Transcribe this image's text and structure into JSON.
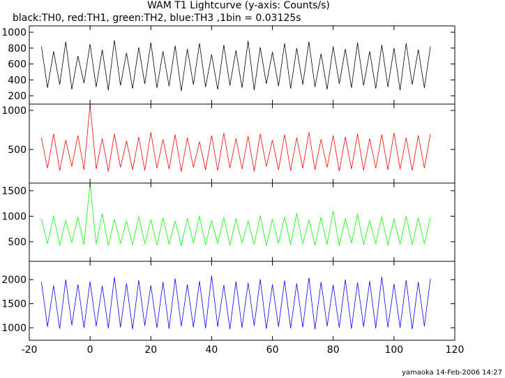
{
  "title": "WAM T1 Lightcurve (y-axis: Counts/s)",
  "subtitle": "black:TH0, red:TH1, green:TH2, blue:TH3 ,1bin = 0.03125s",
  "footer": "yamaoka 14-Feb-2006 14:27",
  "chart_data": [
    {
      "type": "line",
      "color": "#000000",
      "x": [
        -16,
        -14,
        -12,
        -10,
        -8,
        -6,
        -4,
        -2,
        0,
        2,
        4,
        6,
        8,
        10,
        12,
        14,
        16,
        18,
        20,
        22,
        24,
        26,
        28,
        30,
        32,
        34,
        36,
        38,
        40,
        42,
        44,
        46,
        48,
        50,
        52,
        54,
        56,
        58,
        60,
        62,
        64,
        66,
        68,
        70,
        72,
        74,
        76,
        78,
        80,
        82,
        84,
        86,
        88,
        90,
        92,
        94,
        96,
        98,
        100,
        102,
        104,
        106,
        108,
        110,
        112
      ],
      "values": [
        820,
        300,
        760,
        340,
        880,
        280,
        700,
        360,
        850,
        310,
        780,
        270,
        900,
        330,
        740,
        290,
        810,
        350,
        870,
        300,
        760,
        320,
        830,
        260,
        790,
        340,
        860,
        310,
        720,
        280,
        840,
        330,
        770,
        300,
        890,
        270,
        810,
        350,
        750,
        320,
        860,
        290,
        800,
        340,
        880,
        310,
        730,
        280,
        820,
        350,
        790,
        300,
        870,
        330,
        760,
        290,
        840,
        310,
        800,
        270,
        860,
        340,
        780,
        300,
        820
      ],
      "xlim": [
        -20,
        120
      ],
      "xticks": [
        -20,
        0,
        20,
        40,
        60,
        80,
        100,
        120
      ],
      "ylim": [
        95,
        1080
      ],
      "yticks": [
        200,
        400,
        600,
        800,
        1000
      ]
    },
    {
      "type": "line",
      "color": "#ff0000",
      "x": [
        -16,
        -14,
        -12,
        -10,
        -8,
        -6,
        -4,
        -2,
        0,
        2,
        4,
        6,
        8,
        10,
        12,
        14,
        16,
        18,
        20,
        22,
        24,
        26,
        28,
        30,
        32,
        34,
        36,
        38,
        40,
        42,
        44,
        46,
        48,
        50,
        52,
        54,
        56,
        58,
        60,
        62,
        64,
        66,
        68,
        70,
        72,
        74,
        76,
        78,
        80,
        82,
        84,
        86,
        88,
        90,
        92,
        94,
        96,
        98,
        100,
        102,
        104,
        106,
        108,
        110,
        112
      ],
      "values": [
        650,
        260,
        700,
        230,
        620,
        280,
        680,
        240,
        1070,
        250,
        640,
        220,
        700,
        270,
        610,
        240,
        660,
        230,
        720,
        260,
        630,
        250,
        690,
        220,
        650,
        270,
        600,
        240,
        680,
        230,
        710,
        260,
        640,
        250,
        670,
        220,
        700,
        280,
        620,
        240,
        690,
        230,
        650,
        260,
        720,
        240,
        630,
        270,
        680,
        220,
        660,
        250,
        700,
        230,
        640,
        260,
        690,
        240,
        710,
        250,
        650,
        230,
        680,
        260,
        700
      ],
      "xlim": [
        -20,
        120
      ],
      "xticks": [
        -20,
        0,
        20,
        40,
        60,
        80,
        100,
        120
      ],
      "ylim": [
        70,
        1080
      ],
      "yticks": [
        500,
        1000
      ]
    },
    {
      "type": "line",
      "color": "#00ff00",
      "x": [
        -16,
        -14,
        -12,
        -10,
        -8,
        -6,
        -4,
        -2,
        0,
        2,
        4,
        6,
        8,
        10,
        12,
        14,
        16,
        18,
        20,
        22,
        24,
        26,
        28,
        30,
        32,
        34,
        36,
        38,
        40,
        42,
        44,
        46,
        48,
        50,
        52,
        54,
        56,
        58,
        60,
        62,
        64,
        66,
        68,
        70,
        72,
        74,
        76,
        78,
        80,
        82,
        84,
        86,
        88,
        90,
        92,
        94,
        96,
        98,
        100,
        102,
        104,
        106,
        108,
        110,
        112
      ],
      "values": [
        950,
        460,
        1000,
        430,
        920,
        480,
        980,
        440,
        1640,
        450,
        1050,
        420,
        940,
        470,
        900,
        440,
        990,
        460,
        930,
        430,
        970,
        450,
        910,
        420,
        960,
        470,
        1000,
        440,
        920,
        460,
        980,
        430,
        950,
        480,
        900,
        450,
        1010,
        420,
        940,
        470,
        990,
        440,
        1060,
        460,
        930,
        430,
        980,
        450,
        1100,
        420,
        960,
        470,
        1040,
        440,
        920,
        460,
        990,
        430,
        950,
        450,
        1000,
        440,
        970,
        460,
        980
      ],
      "xlim": [
        -20,
        120
      ],
      "xticks": [
        -20,
        0,
        20,
        40,
        60,
        80,
        100,
        120
      ],
      "ylim": [
        115,
        1650
      ],
      "yticks": [
        500,
        1000,
        1500
      ]
    },
    {
      "type": "line",
      "color": "#0000ff",
      "x": [
        -16,
        -14,
        -12,
        -10,
        -8,
        -6,
        -4,
        -2,
        0,
        2,
        4,
        6,
        8,
        10,
        12,
        14,
        16,
        18,
        20,
        22,
        24,
        26,
        28,
        30,
        32,
        34,
        36,
        38,
        40,
        42,
        44,
        46,
        48,
        50,
        52,
        54,
        56,
        58,
        60,
        62,
        64,
        66,
        68,
        70,
        72,
        74,
        76,
        78,
        80,
        82,
        84,
        86,
        88,
        90,
        92,
        94,
        96,
        98,
        100,
        102,
        104,
        106,
        108,
        110,
        112
      ],
      "values": [
        1950,
        1020,
        1880,
        980,
        2000,
        1050,
        1900,
        1000,
        1960,
        1030,
        1870,
        990,
        2050,
        1010,
        1920,
        970,
        1990,
        1040,
        1880,
        1000,
        1950,
        980,
        2020,
        1030,
        1900,
        1010,
        1970,
        990,
        2080,
        1020,
        1890,
        970,
        1960,
        1000,
        1930,
        1040,
        2010,
        980,
        1900,
        1020,
        1980,
        990,
        1920,
        1010,
        2040,
        970,
        1950,
        1030,
        1890,
        1000,
        2000,
        980,
        1940,
        1020,
        1970,
        990,
        2060,
        1010,
        1910,
        1000,
        1990,
        970,
        1950,
        1030,
        2020
      ],
      "xlim": [
        -20,
        120
      ],
      "xticks": [
        -20,
        0,
        20,
        40,
        60,
        80,
        100,
        120
      ],
      "ylim": [
        740,
        2380
      ],
      "yticks": [
        1000,
        1500,
        2000
      ]
    }
  ]
}
